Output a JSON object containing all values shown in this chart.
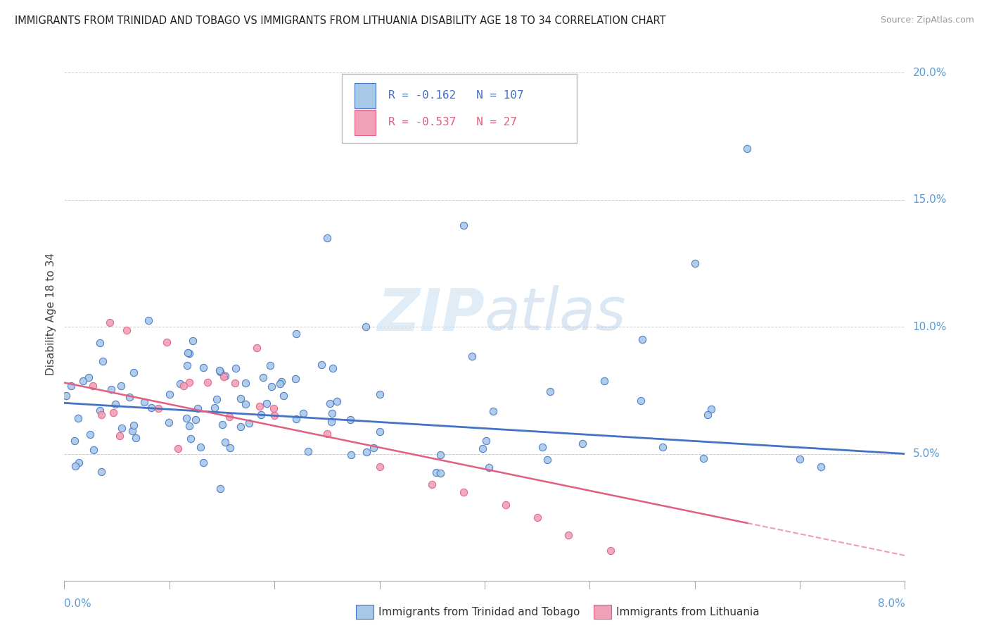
{
  "title": "IMMIGRANTS FROM TRINIDAD AND TOBAGO VS IMMIGRANTS FROM LITHUANIA DISABILITY AGE 18 TO 34 CORRELATION CHART",
  "source": "Source: ZipAtlas.com",
  "ylabel_left": "Disability Age 18 to 34",
  "legend_blue": {
    "R": -0.162,
    "N": 107,
    "label": "Immigrants from Trinidad and Tobago"
  },
  "legend_pink": {
    "R": -0.537,
    "N": 27,
    "label": "Immigrants from Lithuania"
  },
  "color_blue": "#a8c8e8",
  "color_pink": "#f0a0b8",
  "color_blue_line": "#4472c4",
  "color_pink_line": "#e06080",
  "background": "#ffffff",
  "xmin": 0.0,
  "xmax": 0.08,
  "ymin": 0.0,
  "ymax": 0.21,
  "grid_color": "#cccccc",
  "right_axis_color": "#5b9bd5",
  "watermark_color": "#ddeef8",
  "blue_trend": [
    0.07,
    0.05
  ],
  "pink_trend": [
    0.078,
    0.01
  ]
}
